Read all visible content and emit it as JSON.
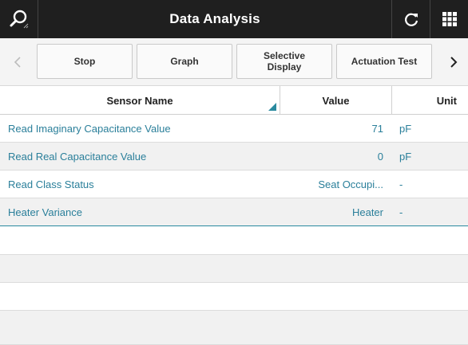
{
  "header": {
    "title": "Data Analysis",
    "icons": {
      "search": "search-icon",
      "refresh": "refresh-icon",
      "grid": "grid-menu-icon"
    }
  },
  "toolbar": {
    "buttons": [
      {
        "label": "Stop"
      },
      {
        "label": "Graph"
      },
      {
        "label": "Selective\nDisplay"
      },
      {
        "label": "Actuation Test"
      }
    ]
  },
  "table": {
    "columns": {
      "name": "Sensor Name",
      "value": "Value",
      "unit": "Unit"
    },
    "rows": [
      {
        "name": "Read Imaginary Capacitance Value",
        "value": "71",
        "unit": "pF"
      },
      {
        "name": "Read Real Capacitance Value",
        "value": "0",
        "unit": "pF"
      },
      {
        "name": "Read Class Status",
        "value": "Seat Occupi...",
        "unit": "-"
      },
      {
        "name": "Heater Variance",
        "value": "Heater",
        "unit": "-"
      }
    ]
  },
  "colors": {
    "accent": "#2a7f9a",
    "header_bg": "#1f1f1f"
  }
}
